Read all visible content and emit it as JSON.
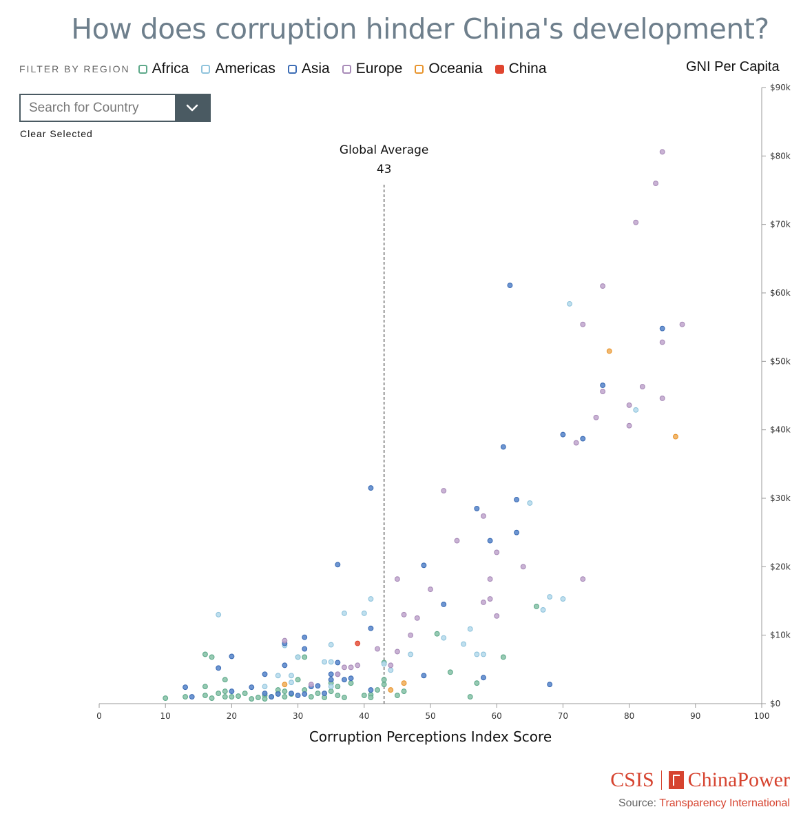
{
  "title": "How does corruption hinder China's development?",
  "filter": {
    "label": "FILTER BY REGION",
    "regions": [
      {
        "name": "Africa",
        "color": "#5ea98a"
      },
      {
        "name": "Americas",
        "color": "#8fc3dc"
      },
      {
        "name": "Asia",
        "color": "#3d6db5"
      },
      {
        "name": "Europe",
        "color": "#a88bb8"
      },
      {
        "name": "Oceania",
        "color": "#e8952e"
      },
      {
        "name": "China",
        "color": "#e0452f"
      }
    ]
  },
  "search": {
    "placeholder": "Search for Country",
    "icon": "chevron-down-icon"
  },
  "clear_label": "Clear Selected",
  "gni_label": "GNI Per Capita",
  "logo": {
    "csis": "CSIS",
    "chinapower": "ChinaPower"
  },
  "source": {
    "prefix": "Source: ",
    "name": "Transparency International"
  },
  "chart_data": {
    "type": "scatter",
    "title": "How does corruption hinder China's development?",
    "xlabel": "Corruption Perceptions Index Score",
    "ylabel": "GNI Per Capita",
    "xlim": [
      0,
      100
    ],
    "ylim": [
      0,
      90000
    ],
    "xticks": [
      0,
      10,
      20,
      30,
      40,
      50,
      60,
      70,
      80,
      90,
      100
    ],
    "yticks": [
      0,
      10000,
      20000,
      30000,
      40000,
      50000,
      60000,
      70000,
      80000,
      90000
    ],
    "ytick_labels": [
      "$0",
      "$10k",
      "$20k",
      "$30k",
      "$40k",
      "$50k",
      "$60k",
      "$70k",
      "$80k",
      "$90k"
    ],
    "reference_line": {
      "label": "Global Average",
      "value": 43
    },
    "grid": false,
    "legend": "top-left",
    "series": [
      {
        "name": "Africa",
        "points": [
          [
            10,
            800
          ],
          [
            13,
            1000
          ],
          [
            16,
            7200
          ],
          [
            17,
            6800
          ],
          [
            16,
            2500
          ],
          [
            16,
            1200
          ],
          [
            17,
            800
          ],
          [
            18,
            1500
          ],
          [
            19,
            3500
          ],
          [
            19,
            1800
          ],
          [
            19,
            1000
          ],
          [
            20,
            1000
          ],
          [
            21,
            1100
          ],
          [
            22,
            1500
          ],
          [
            23,
            700
          ],
          [
            24,
            900
          ],
          [
            25,
            1200
          ],
          [
            25,
            700
          ],
          [
            26,
            1000
          ],
          [
            27,
            1500
          ],
          [
            27,
            2000
          ],
          [
            28,
            1000
          ],
          [
            28,
            1800
          ],
          [
            29,
            1400
          ],
          [
            30,
            6800
          ],
          [
            30,
            3500
          ],
          [
            31,
            6800
          ],
          [
            31,
            2000
          ],
          [
            32,
            1000
          ],
          [
            33,
            1500
          ],
          [
            34,
            900
          ],
          [
            35,
            1800
          ],
          [
            35,
            3000
          ],
          [
            36,
            1200
          ],
          [
            36,
            2500
          ],
          [
            37,
            900
          ],
          [
            38,
            3000
          ],
          [
            40,
            1200
          ],
          [
            41,
            1300
          ],
          [
            41,
            900
          ],
          [
            42,
            2000
          ],
          [
            43,
            3500
          ],
          [
            43,
            2800
          ],
          [
            43,
            6000
          ],
          [
            45,
            1200
          ],
          [
            46,
            1800
          ],
          [
            51,
            10200
          ],
          [
            53,
            4600
          ],
          [
            56,
            1000
          ],
          [
            57,
            3000
          ],
          [
            61,
            6800
          ],
          [
            66,
            14200
          ]
        ]
      },
      {
        "name": "Americas",
        "points": [
          [
            18,
            13000
          ],
          [
            25,
            2500
          ],
          [
            27,
            4100
          ],
          [
            28,
            8500
          ],
          [
            29,
            4100
          ],
          [
            29,
            3100
          ],
          [
            30,
            6800
          ],
          [
            34,
            6100
          ],
          [
            35,
            8600
          ],
          [
            35,
            6100
          ],
          [
            35,
            2500
          ],
          [
            37,
            13200
          ],
          [
            40,
            13200
          ],
          [
            41,
            15300
          ],
          [
            43,
            5800
          ],
          [
            44,
            4900
          ],
          [
            47,
            7200
          ],
          [
            52,
            9600
          ],
          [
            55,
            8700
          ],
          [
            56,
            10900
          ],
          [
            57,
            7200
          ],
          [
            58,
            7200
          ],
          [
            65,
            29300
          ],
          [
            67,
            13700
          ],
          [
            68,
            15600
          ],
          [
            70,
            15300
          ],
          [
            71,
            58400
          ],
          [
            81,
            42900
          ]
        ]
      },
      {
        "name": "Asia",
        "points": [
          [
            13,
            2400
          ],
          [
            14,
            1000
          ],
          [
            18,
            5200
          ],
          [
            20,
            6900
          ],
          [
            20,
            1800
          ],
          [
            23,
            2400
          ],
          [
            25,
            4300
          ],
          [
            25,
            1500
          ],
          [
            26,
            1000
          ],
          [
            27,
            1400
          ],
          [
            28,
            5600
          ],
          [
            28,
            8800
          ],
          [
            29,
            1500
          ],
          [
            30,
            1200
          ],
          [
            31,
            9700
          ],
          [
            31,
            8000
          ],
          [
            31,
            1400
          ],
          [
            32,
            2500
          ],
          [
            33,
            2600
          ],
          [
            34,
            1500
          ],
          [
            35,
            3500
          ],
          [
            35,
            4300
          ],
          [
            36,
            4300
          ],
          [
            36,
            6000
          ],
          [
            36,
            20300
          ],
          [
            37,
            3500
          ],
          [
            38,
            3700
          ],
          [
            41,
            31500
          ],
          [
            41,
            11000
          ],
          [
            41,
            2000
          ],
          [
            49,
            20200
          ],
          [
            49,
            4100
          ],
          [
            52,
            14500
          ],
          [
            57,
            28500
          ],
          [
            59,
            23800
          ],
          [
            58,
            3800
          ],
          [
            61,
            37500
          ],
          [
            62,
            61100
          ],
          [
            63,
            29800
          ],
          [
            63,
            25000
          ],
          [
            68,
            2800
          ],
          [
            70,
            39300
          ],
          [
            73,
            38700
          ],
          [
            76,
            46500
          ],
          [
            85,
            54800
          ]
        ]
      },
      {
        "name": "Europe",
        "points": [
          [
            28,
            9200
          ],
          [
            32,
            2800
          ],
          [
            36,
            4300
          ],
          [
            37,
            5300
          ],
          [
            38,
            5300
          ],
          [
            39,
            5600
          ],
          [
            42,
            8000
          ],
          [
            44,
            5600
          ],
          [
            45,
            7600
          ],
          [
            45,
            18200
          ],
          [
            46,
            13000
          ],
          [
            47,
            10000
          ],
          [
            48,
            12500
          ],
          [
            50,
            16700
          ],
          [
            52,
            31100
          ],
          [
            54,
            23800
          ],
          [
            58,
            27400
          ],
          [
            58,
            14800
          ],
          [
            59,
            18200
          ],
          [
            59,
            15300
          ],
          [
            60,
            12800
          ],
          [
            60,
            22100
          ],
          [
            64,
            20000
          ],
          [
            72,
            38100
          ],
          [
            73,
            55400
          ],
          [
            73,
            18200
          ],
          [
            75,
            41800
          ],
          [
            76,
            61000
          ],
          [
            76,
            45600
          ],
          [
            80,
            43600
          ],
          [
            80,
            40600
          ],
          [
            81,
            70300
          ],
          [
            82,
            46300
          ],
          [
            84,
            76000
          ],
          [
            85,
            80600
          ],
          [
            85,
            52800
          ],
          [
            85,
            44600
          ],
          [
            88,
            55400
          ]
        ]
      },
      {
        "name": "Oceania",
        "points": [
          [
            28,
            2800
          ],
          [
            44,
            2000
          ],
          [
            46,
            3000
          ],
          [
            77,
            51500
          ],
          [
            87,
            39000
          ]
        ]
      },
      {
        "name": "China",
        "points": [
          [
            39,
            8800
          ]
        ]
      }
    ]
  }
}
